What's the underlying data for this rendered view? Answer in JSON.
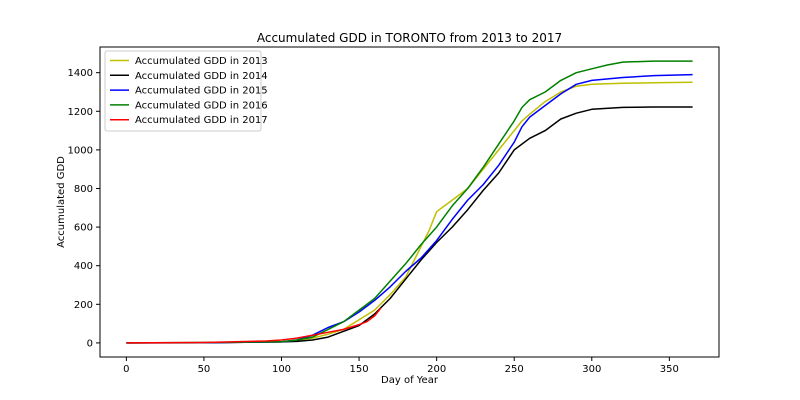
{
  "chart_data": {
    "type": "line",
    "title": "Accumulated GDD in  TORONTO from 2013 to 2017",
    "xlabel": "Day of Year",
    "ylabel": "Accumulated GDD",
    "xlim": [
      -17,
      382
    ],
    "ylim": [
      -73,
      1533
    ],
    "xticks": [
      0,
      50,
      100,
      150,
      200,
      250,
      300,
      350
    ],
    "yticks": [
      0,
      200,
      400,
      600,
      800,
      1000,
      1200,
      1400
    ],
    "grid": false,
    "legend_position": "top-left",
    "series": [
      {
        "name": "Accumulated GDD in 2013",
        "color": "#bfbf00",
        "points": [
          [
            0,
            0
          ],
          [
            50,
            1
          ],
          [
            100,
            5
          ],
          [
            110,
            12
          ],
          [
            120,
            25
          ],
          [
            130,
            45
          ],
          [
            140,
            70
          ],
          [
            150,
            120
          ],
          [
            160,
            170
          ],
          [
            170,
            250
          ],
          [
            180,
            340
          ],
          [
            190,
            500
          ],
          [
            195,
            580
          ],
          [
            200,
            680
          ],
          [
            210,
            740
          ],
          [
            220,
            800
          ],
          [
            230,
            900
          ],
          [
            240,
            1000
          ],
          [
            250,
            1100
          ],
          [
            255,
            1150
          ],
          [
            260,
            1185
          ],
          [
            270,
            1250
          ],
          [
            280,
            1300
          ],
          [
            290,
            1330
          ],
          [
            300,
            1340
          ],
          [
            320,
            1345
          ],
          [
            340,
            1348
          ],
          [
            365,
            1350
          ]
        ]
      },
      {
        "name": "Accumulated GDD in 2014",
        "color": "#000000",
        "points": [
          [
            0,
            0
          ],
          [
            50,
            1
          ],
          [
            100,
            5
          ],
          [
            110,
            8
          ],
          [
            120,
            15
          ],
          [
            130,
            30
          ],
          [
            140,
            60
          ],
          [
            150,
            90
          ],
          [
            160,
            150
          ],
          [
            170,
            230
          ],
          [
            180,
            330
          ],
          [
            190,
            430
          ],
          [
            200,
            520
          ],
          [
            210,
            600
          ],
          [
            220,
            690
          ],
          [
            230,
            790
          ],
          [
            240,
            880
          ],
          [
            250,
            1000
          ],
          [
            260,
            1060
          ],
          [
            270,
            1100
          ],
          [
            280,
            1160
          ],
          [
            290,
            1190
          ],
          [
            300,
            1210
          ],
          [
            320,
            1220
          ],
          [
            340,
            1222
          ],
          [
            365,
            1222
          ]
        ]
      },
      {
        "name": "Accumulated GDD in 2015",
        "color": "#0000ff",
        "points": [
          [
            0,
            0
          ],
          [
            50,
            1
          ],
          [
            100,
            5
          ],
          [
            110,
            15
          ],
          [
            120,
            40
          ],
          [
            130,
            80
          ],
          [
            140,
            110
          ],
          [
            150,
            160
          ],
          [
            160,
            220
          ],
          [
            170,
            290
          ],
          [
            180,
            370
          ],
          [
            190,
            440
          ],
          [
            200,
            530
          ],
          [
            210,
            640
          ],
          [
            220,
            740
          ],
          [
            230,
            820
          ],
          [
            240,
            920
          ],
          [
            250,
            1040
          ],
          [
            255,
            1120
          ],
          [
            260,
            1170
          ],
          [
            270,
            1230
          ],
          [
            280,
            1290
          ],
          [
            290,
            1340
          ],
          [
            300,
            1360
          ],
          [
            320,
            1375
          ],
          [
            340,
            1385
          ],
          [
            365,
            1390
          ]
        ]
      },
      {
        "name": "Accumulated GDD in 2016",
        "color": "#008000",
        "points": [
          [
            0,
            0
          ],
          [
            50,
            2
          ],
          [
            100,
            6
          ],
          [
            110,
            15
          ],
          [
            120,
            30
          ],
          [
            130,
            70
          ],
          [
            140,
            110
          ],
          [
            150,
            170
          ],
          [
            160,
            230
          ],
          [
            170,
            320
          ],
          [
            180,
            410
          ],
          [
            190,
            510
          ],
          [
            200,
            600
          ],
          [
            210,
            710
          ],
          [
            220,
            800
          ],
          [
            230,
            910
          ],
          [
            240,
            1030
          ],
          [
            250,
            1150
          ],
          [
            255,
            1220
          ],
          [
            260,
            1260
          ],
          [
            270,
            1300
          ],
          [
            280,
            1360
          ],
          [
            290,
            1400
          ],
          [
            300,
            1420
          ],
          [
            310,
            1440
          ],
          [
            320,
            1455
          ],
          [
            340,
            1460
          ],
          [
            365,
            1460
          ]
        ]
      },
      {
        "name": "Accumulated GDD in 2017",
        "color": "#ff0000",
        "points": [
          [
            0,
            0
          ],
          [
            50,
            2
          ],
          [
            70,
            6
          ],
          [
            90,
            10
          ],
          [
            100,
            15
          ],
          [
            110,
            25
          ],
          [
            120,
            40
          ],
          [
            130,
            55
          ],
          [
            140,
            70
          ],
          [
            150,
            95
          ],
          [
            155,
            110
          ],
          [
            160,
            140
          ],
          [
            164,
            180
          ]
        ]
      }
    ]
  }
}
